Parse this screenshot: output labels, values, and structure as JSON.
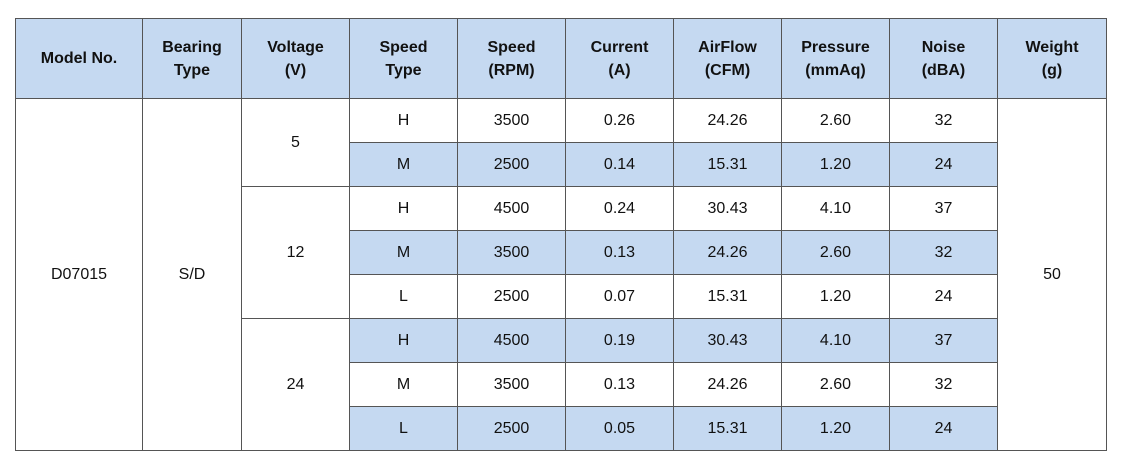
{
  "header": [
    "Model No.",
    "Bearing\nType",
    "Voltage\n(V)",
    "Speed\nType",
    "Speed\n(RPM)",
    "Current\n(A)",
    "AirFlow\n(CFM)",
    "Pressure\n(mmAq)",
    "Noise\n(dBA)",
    "Weight\n(g)"
  ],
  "model": "D07015",
  "bearing": "S/D",
  "weight": "50",
  "groups": [
    {
      "voltage": "5",
      "rows": [
        [
          "H",
          "3500",
          "0.26",
          "24.26",
          "2.60",
          "32"
        ],
        [
          "M",
          "2500",
          "0.14",
          "15.31",
          "1.20",
          "24"
        ]
      ]
    },
    {
      "voltage": "12",
      "rows": [
        [
          "H",
          "4500",
          "0.24",
          "30.43",
          "4.10",
          "37"
        ],
        [
          "M",
          "3500",
          "0.13",
          "24.26",
          "2.60",
          "32"
        ],
        [
          "L",
          "2500",
          "0.07",
          "15.31",
          "1.20",
          "24"
        ]
      ]
    },
    {
      "voltage": "24",
      "rows": [
        [
          "H",
          "4500",
          "0.19",
          "30.43",
          "4.10",
          "37"
        ],
        [
          "M",
          "3500",
          "0.13",
          "24.26",
          "2.60",
          "32"
        ],
        [
          "L",
          "2500",
          "0.05",
          "15.31",
          "1.20",
          "24"
        ]
      ]
    }
  ]
}
